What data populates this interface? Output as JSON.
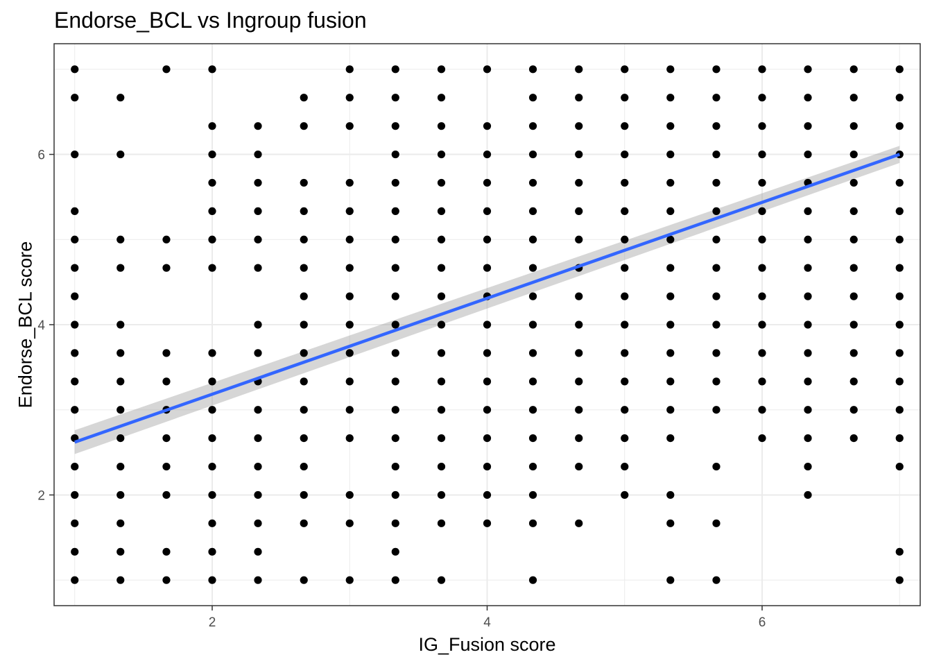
{
  "chart_data": {
    "type": "scatter",
    "title": "Endorse_BCL vs Ingroup fusion",
    "xlabel": "IG_Fusion score",
    "ylabel": "Endorse_BCL score",
    "xlim": [
      0.85,
      7.15
    ],
    "ylim": [
      0.7,
      7.3
    ],
    "xticks": [
      2,
      4,
      6
    ],
    "yticks": [
      2,
      4,
      6
    ],
    "grid": true,
    "legend": "none",
    "colors": {
      "points": "#000000",
      "fit_line": "#3366FF",
      "confidence_band": "#999999",
      "grid": "#EBEBEB",
      "panel_border": "#333333"
    },
    "x_levels": [
      1,
      1.333,
      1.667,
      2,
      2.333,
      2.667,
      3,
      3.333,
      3.667,
      4,
      4.333,
      4.667,
      5,
      5.333,
      5.667,
      6,
      6.333,
      6.667,
      7
    ],
    "y_levels": [
      1,
      1.333,
      1.667,
      2,
      2.333,
      2.667,
      3,
      3.333,
      3.667,
      4,
      4.333,
      4.667,
      5,
      5.333,
      5.667,
      6,
      6.333,
      6.667,
      7
    ],
    "points_by_x": [
      {
        "x": 1,
        "y": [
          7,
          6.667,
          6,
          5.333,
          5,
          4.667,
          4.333,
          4,
          3.667,
          3.333,
          3,
          2.667,
          2.333,
          2,
          1.667,
          1.333,
          1
        ]
      },
      {
        "x": 1.333,
        "y": [
          6.667,
          6,
          5,
          4.667,
          4,
          3.667,
          3.333,
          3,
          2.667,
          2.333,
          2,
          1.667,
          1.333,
          1
        ]
      },
      {
        "x": 1.667,
        "y": [
          7,
          5,
          4.667,
          3.667,
          3.333,
          3,
          2.667,
          2.333,
          2,
          1.333,
          1
        ]
      },
      {
        "x": 2,
        "y": [
          7,
          6.333,
          6,
          5.667,
          5.333,
          5,
          4.667,
          3.667,
          3.333,
          3,
          2.667,
          2.333,
          2,
          1.667,
          1.333,
          1
        ]
      },
      {
        "x": 2.333,
        "y": [
          6.333,
          6,
          5.667,
          5.333,
          5,
          4.667,
          4,
          3.667,
          3.333,
          3,
          2.667,
          2.333,
          2,
          1.667,
          1.333,
          1
        ]
      },
      {
        "x": 2.667,
        "y": [
          6.667,
          6.333,
          5.667,
          5.333,
          5,
          4.667,
          4.333,
          4,
          3.667,
          3.333,
          3,
          2.667,
          2.333,
          2,
          1.667,
          1
        ]
      },
      {
        "x": 3,
        "y": [
          7,
          6.667,
          6.333,
          5.667,
          5.333,
          5,
          4.667,
          4.333,
          4,
          3.667,
          3.333,
          3,
          2.667,
          2,
          1.667,
          1
        ]
      },
      {
        "x": 3.333,
        "y": [
          7,
          6.667,
          6.333,
          6,
          5.667,
          5.333,
          5,
          4.667,
          4.333,
          4,
          3.667,
          3.333,
          3,
          2.667,
          2.333,
          2,
          1.667,
          1.333,
          1
        ]
      },
      {
        "x": 3.667,
        "y": [
          7,
          6.667,
          6.333,
          6,
          5.667,
          5.333,
          5,
          4.667,
          4.333,
          4,
          3.667,
          3.333,
          3,
          2.667,
          2.333,
          2,
          1.667,
          1
        ]
      },
      {
        "x": 4,
        "y": [
          7,
          6.333,
          6,
          5.667,
          5.333,
          5,
          4.667,
          4.333,
          4,
          3.667,
          3.333,
          3,
          2.667,
          2.333,
          2,
          1.667
        ]
      },
      {
        "x": 4.333,
        "y": [
          7,
          6.667,
          6.333,
          6,
          5.667,
          5.333,
          5,
          4.667,
          4.333,
          4,
          3.667,
          3.333,
          3,
          2.667,
          2.333,
          2,
          1.667,
          1
        ]
      },
      {
        "x": 4.667,
        "y": [
          7,
          6.667,
          6.333,
          6,
          5.667,
          5.333,
          5,
          4.667,
          4.333,
          4,
          3.667,
          3.333,
          3,
          2.667,
          2.333,
          1.667
        ]
      },
      {
        "x": 5,
        "y": [
          7,
          6.667,
          6.333,
          6,
          5.667,
          5.333,
          5,
          4.667,
          4.333,
          4,
          3.667,
          3.333,
          3,
          2.667,
          2.333,
          2
        ]
      },
      {
        "x": 5.333,
        "y": [
          7,
          6.667,
          6.333,
          6,
          5.667,
          5.333,
          5,
          4.667,
          4.333,
          4,
          3.667,
          3.333,
          3,
          2.667,
          2,
          1.667,
          1
        ]
      },
      {
        "x": 5.667,
        "y": [
          7,
          6.667,
          6.333,
          6,
          5.667,
          5.333,
          5,
          4.667,
          4.333,
          4,
          3.667,
          3.333,
          3,
          2.333,
          1.667,
          1
        ]
      },
      {
        "x": 6,
        "y": [
          7,
          6.667,
          6.333,
          6,
          5.667,
          5.333,
          5,
          4.667,
          4.333,
          4,
          3.667,
          3.333,
          3,
          2.667
        ]
      },
      {
        "x": 6.333,
        "y": [
          7,
          6.667,
          6.333,
          6,
          5.667,
          5.333,
          5,
          4.667,
          4.333,
          4,
          3.667,
          3.333,
          3,
          2.667,
          2.333,
          2
        ]
      },
      {
        "x": 6.667,
        "y": [
          7,
          6.667,
          6.333,
          6,
          5.667,
          5.333,
          5,
          4.667,
          4.333,
          4,
          3.667,
          3.333,
          3,
          2.667
        ]
      },
      {
        "x": 7,
        "y": [
          7,
          6.667,
          6.333,
          6,
          5.667,
          5.333,
          5,
          4.667,
          4.333,
          4,
          3.667,
          3.333,
          3,
          2.667,
          2.333,
          1.333,
          1
        ]
      }
    ],
    "fit": {
      "method": "linear",
      "x": [
        1,
        7
      ],
      "y": [
        2.62,
        6.0
      ],
      "se_lower": [
        2.48,
        5.9
      ],
      "se_upper": [
        2.76,
        6.1
      ]
    }
  }
}
